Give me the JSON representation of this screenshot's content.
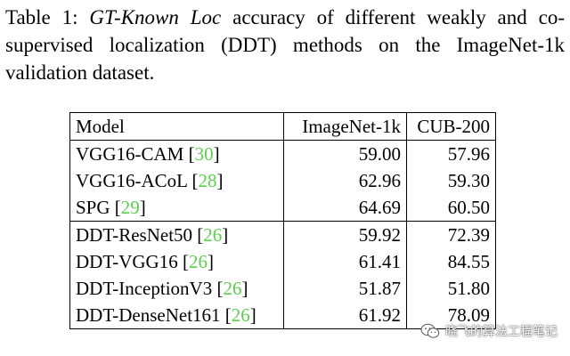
{
  "caption": {
    "label": "Table 1:",
    "italic": "GT-Known Loc",
    "rest": " accuracy of different weakly and co-supervised localization (DDT) methods on the ImageNet-1k validation dataset."
  },
  "table": {
    "headers": [
      "Model",
      "ImageNet-1k",
      "CUB-200"
    ],
    "rows": [
      {
        "model": "VGG16-CAM",
        "cite": "30",
        "imagenet": "59.00",
        "cub": "57.96"
      },
      {
        "model": "VGG16-ACoL",
        "cite": "28",
        "imagenet": "62.96",
        "cub": "59.30"
      },
      {
        "model": "SPG",
        "cite": "29",
        "imagenet": "64.69",
        "cub": "60.50"
      },
      {
        "model": "DDT-ResNet50",
        "cite": "26",
        "imagenet": "59.92",
        "cub": "72.39"
      },
      {
        "model": "DDT-VGG16",
        "cite": "26",
        "imagenet": "61.41",
        "cub": "84.55"
      },
      {
        "model": "DDT-InceptionV3",
        "cite": "26",
        "imagenet": "51.87",
        "cub": "51.80"
      },
      {
        "model": "DDT-DenseNet161",
        "cite": "26",
        "imagenet": "61.92",
        "cub": "78.09"
      }
    ]
  },
  "watermark": {
    "text": "晓飞的算法工程笔记",
    "icon": "wechat-icon"
  }
}
